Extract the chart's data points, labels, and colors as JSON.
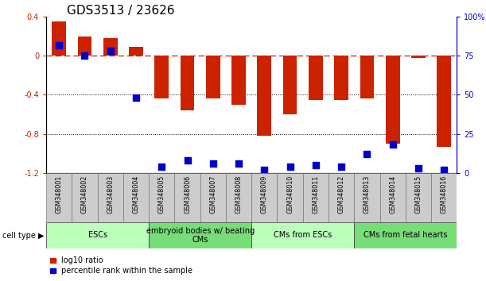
{
  "title": "GDS3513 / 23626",
  "samples": [
    "GSM348001",
    "GSM348002",
    "GSM348003",
    "GSM348004",
    "GSM348005",
    "GSM348006",
    "GSM348007",
    "GSM348008",
    "GSM348009",
    "GSM348010",
    "GSM348011",
    "GSM348012",
    "GSM348013",
    "GSM348014",
    "GSM348015",
    "GSM348016"
  ],
  "log10_ratio": [
    0.35,
    0.2,
    0.18,
    0.09,
    -0.44,
    -0.56,
    -0.44,
    -0.5,
    -0.82,
    -0.6,
    -0.45,
    -0.45,
    -0.44,
    -0.9,
    -0.02,
    -0.93
  ],
  "percentile_rank": [
    82,
    75,
    78,
    48,
    4,
    8,
    6,
    6,
    2,
    4,
    5,
    4,
    12,
    18,
    3,
    2
  ],
  "bar_color": "#cc2200",
  "dot_color": "#0000cc",
  "zero_line_color": "#cc2200",
  "grid_color": "#000000",
  "ylim_left": [
    -1.2,
    0.4
  ],
  "ylim_right": [
    0,
    100
  ],
  "right_ticks": [
    0,
    25,
    50,
    75,
    100
  ],
  "right_tick_labels": [
    "0",
    "25",
    "50",
    "75",
    "100%"
  ],
  "left_ticks": [
    -1.2,
    -0.8,
    -0.4,
    0.0,
    0.4
  ],
  "left_tick_labels": [
    "-1.2",
    "-0.8",
    "-0.4",
    "0",
    "0.4"
  ],
  "cell_groups": [
    {
      "label": "ESCs",
      "start": 0,
      "end": 3,
      "color": "#bbffbb"
    },
    {
      "label": "embryoid bodies w/ beating\nCMs",
      "start": 4,
      "end": 7,
      "color": "#77dd77"
    },
    {
      "label": "CMs from ESCs",
      "start": 8,
      "end": 11,
      "color": "#bbffbb"
    },
    {
      "label": "CMs from fetal hearts",
      "start": 12,
      "end": 15,
      "color": "#77dd77"
    }
  ],
  "cell_type_label": "cell type",
  "legend_items": [
    {
      "label": "log10 ratio",
      "color": "#cc2200"
    },
    {
      "label": "percentile rank within the sample",
      "color": "#0000cc"
    }
  ],
  "bar_width": 0.55,
  "dot_size": 28,
  "dot_marker": "s",
  "background_color": "#ffffff",
  "title_fontsize": 11,
  "tick_fontsize": 7,
  "label_fontsize": 5.8,
  "cell_fontsize": 7
}
